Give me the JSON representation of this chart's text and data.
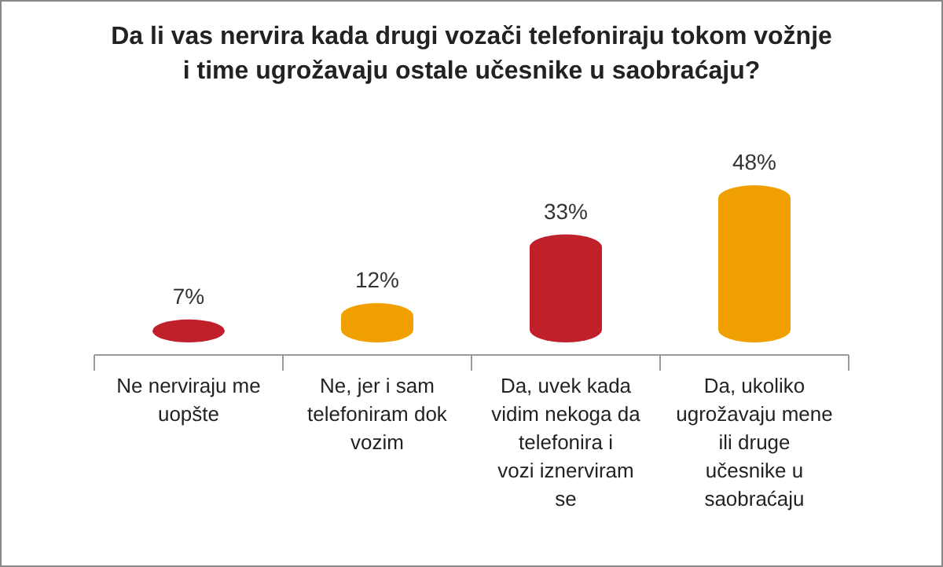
{
  "chart_data": {
    "type": "bar",
    "title": "Da li vas nervira kada drugi vozači telefoniraju tokom vožnje i time ugrožavaju ostale učesnike u saobraćaju?",
    "categories": [
      "Ne nerviraju me uopšte",
      "Ne, jer i sam telefoniram dok vozim",
      "Da, uvek kada vidim nekoga da telefonira i vozi iznerviram se",
      "Da, ukoliko ugrožavaju mene ili druge učesnike u saobraćaju"
    ],
    "values": [
      7,
      12,
      33,
      48
    ],
    "colors": [
      "#c0202a",
      "#f0a000",
      "#c0202a",
      "#f0a000"
    ],
    "value_labels": [
      "7%",
      "12%",
      "33%",
      "48%"
    ]
  }
}
